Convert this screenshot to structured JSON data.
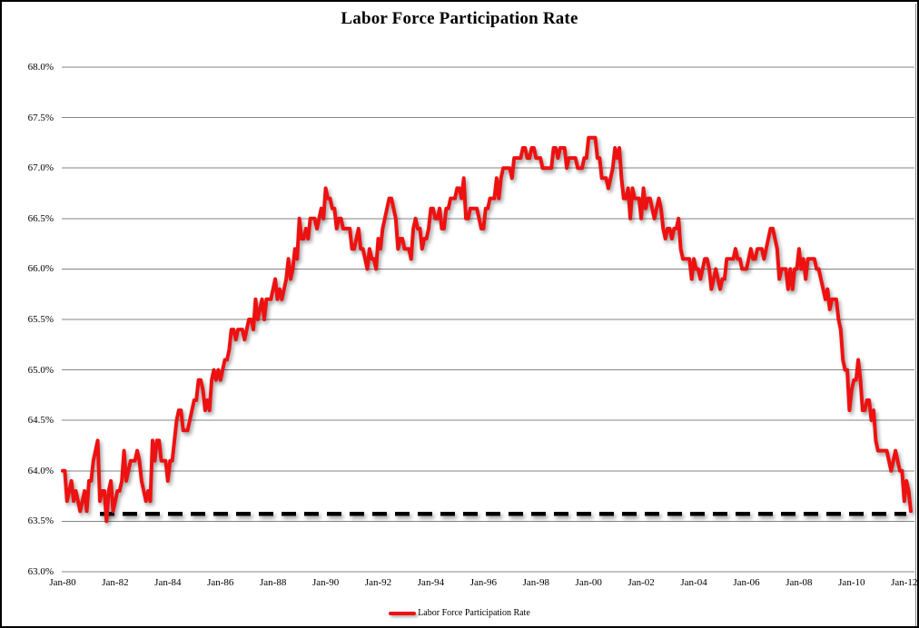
{
  "chart_data": {
    "type": "line",
    "title": "Labor Force Participation Rate",
    "legend_position": "bottom",
    "grid": true,
    "colors": {
      "series": "#ee1111",
      "reference_line": "#000000",
      "gridline": "#848484",
      "background": "#ffffff",
      "border": "#000000"
    },
    "y_axis": {
      "min": 63.0,
      "max": 68.0,
      "step": 0.5,
      "tick_labels": [
        "68.0%",
        "67.5%",
        "67.0%",
        "66.5%",
        "66.0%",
        "65.5%",
        "65.0%",
        "64.5%",
        "64.0%",
        "63.5%",
        "63.0%"
      ]
    },
    "x_axis": {
      "tick_labels": [
        "Jan-80",
        "Jan-82",
        "Jan-84",
        "Jan-86",
        "Jan-88",
        "Jan-90",
        "Jan-92",
        "Jan-94",
        "Jan-96",
        "Jan-98",
        "Jan-00",
        "Jan-02",
        "Jan-04",
        "Jan-06",
        "Jan-08",
        "Jan-10",
        "Jan-12"
      ],
      "months_per_tick": 24
    },
    "reference_line": {
      "value": 63.6,
      "style": "dashed",
      "color": "#000000"
    },
    "legend": [
      {
        "label": "Labor Force Participation Rate",
        "color": "#ee1111"
      }
    ],
    "series": [
      {
        "name": "Labor Force Participation Rate",
        "color": "#ee1111",
        "start": "Jan-80",
        "frequency": "monthly",
        "values": [
          64.0,
          64.0,
          63.7,
          63.8,
          63.9,
          63.7,
          63.8,
          63.7,
          63.6,
          63.7,
          63.8,
          63.6,
          63.9,
          63.9,
          64.1,
          64.2,
          64.3,
          63.7,
          63.8,
          63.8,
          63.5,
          63.8,
          63.9,
          63.6,
          63.7,
          63.8,
          63.8,
          63.9,
          64.2,
          63.9,
          64.0,
          64.1,
          64.1,
          64.1,
          64.2,
          64.1,
          63.9,
          63.8,
          63.7,
          63.8,
          63.7,
          64.3,
          64.1,
          64.3,
          64.3,
          64.1,
          64.1,
          64.1,
          63.9,
          64.1,
          64.1,
          64.3,
          64.5,
          64.6,
          64.6,
          64.4,
          64.4,
          64.4,
          64.5,
          64.6,
          64.7,
          64.7,
          64.9,
          64.9,
          64.8,
          64.6,
          64.7,
          64.6,
          64.9,
          65.0,
          64.9,
          65.0,
          64.9,
          65.0,
          65.1,
          65.1,
          65.2,
          65.4,
          65.4,
          65.3,
          65.4,
          65.4,
          65.4,
          65.3,
          65.4,
          65.5,
          65.5,
          65.4,
          65.7,
          65.5,
          65.6,
          65.7,
          65.5,
          65.7,
          65.7,
          65.7,
          65.8,
          65.9,
          65.7,
          65.8,
          65.7,
          65.8,
          65.9,
          66.1,
          65.9,
          66.0,
          66.2,
          66.1,
          66.5,
          66.3,
          66.3,
          66.4,
          66.3,
          66.5,
          66.5,
          66.5,
          66.4,
          66.5,
          66.6,
          66.5,
          66.8,
          66.7,
          66.7,
          66.6,
          66.6,
          66.4,
          66.5,
          66.5,
          66.4,
          66.4,
          66.4,
          66.4,
          66.2,
          66.2,
          66.3,
          66.4,
          66.2,
          66.2,
          66.1,
          66.0,
          66.2,
          66.1,
          66.1,
          66.0,
          66.3,
          66.2,
          66.4,
          66.5,
          66.6,
          66.7,
          66.7,
          66.6,
          66.5,
          66.2,
          66.3,
          66.3,
          66.2,
          66.2,
          66.2,
          66.1,
          66.4,
          66.5,
          66.4,
          66.4,
          66.2,
          66.3,
          66.3,
          66.4,
          66.6,
          66.6,
          66.5,
          66.5,
          66.6,
          66.4,
          66.4,
          66.6,
          66.6,
          66.7,
          66.7,
          66.7,
          66.8,
          66.8,
          66.7,
          66.9,
          66.5,
          66.5,
          66.6,
          66.6,
          66.6,
          66.6,
          66.5,
          66.4,
          66.4,
          66.6,
          66.6,
          66.7,
          66.7,
          66.7,
          66.9,
          66.7,
          66.9,
          67.0,
          67.0,
          67.0,
          67.0,
          66.9,
          67.1,
          67.1,
          67.1,
          67.1,
          67.2,
          67.2,
          67.1,
          67.1,
          67.2,
          67.2,
          67.1,
          67.1,
          67.1,
          67.0,
          67.0,
          67.0,
          67.0,
          67.0,
          67.2,
          67.2,
          67.1,
          67.2,
          67.2,
          67.2,
          67.0,
          67.1,
          67.1,
          67.1,
          67.1,
          67.0,
          67.0,
          67.0,
          67.1,
          67.1,
          67.3,
          67.3,
          67.3,
          67.3,
          67.1,
          67.1,
          66.9,
          66.9,
          66.9,
          66.8,
          66.9,
          67.0,
          67.2,
          67.1,
          67.2,
          66.9,
          66.7,
          66.7,
          66.8,
          66.5,
          66.8,
          66.7,
          66.7,
          66.7,
          66.5,
          66.8,
          66.6,
          66.7,
          66.7,
          66.6,
          66.5,
          66.6,
          66.7,
          66.6,
          66.4,
          66.3,
          66.4,
          66.4,
          66.3,
          66.4,
          66.4,
          66.5,
          66.2,
          66.1,
          66.1,
          66.1,
          66.1,
          65.9,
          66.1,
          66.0,
          66.0,
          65.9,
          66.0,
          66.1,
          66.1,
          66.0,
          65.8,
          65.9,
          66.0,
          65.9,
          65.8,
          65.9,
          65.9,
          66.1,
          66.1,
          66.1,
          66.1,
          66.2,
          66.1,
          66.1,
          66.0,
          66.0,
          66.0,
          66.1,
          66.2,
          66.1,
          66.1,
          66.2,
          66.2,
          66.2,
          66.1,
          66.2,
          66.3,
          66.4,
          66.4,
          66.3,
          66.2,
          65.9,
          66.0,
          66.0,
          66.0,
          65.8,
          66.0,
          65.8,
          66.0,
          66.0,
          66.2,
          66.0,
          66.1,
          65.9,
          66.1,
          66.1,
          66.1,
          66.1,
          66.0,
          66.0,
          65.9,
          65.8,
          65.7,
          65.8,
          65.6,
          65.7,
          65.7,
          65.7,
          65.5,
          65.4,
          65.1,
          65.0,
          65.0,
          64.6,
          64.8,
          64.9,
          64.9,
          65.1,
          64.9,
          64.6,
          64.6,
          64.7,
          64.7,
          64.5,
          64.6,
          64.3,
          64.2,
          64.2,
          64.2,
          64.2,
          64.2,
          64.1,
          64.0,
          64.1,
          64.2,
          64.1,
          64.0,
          64.0,
          63.7,
          63.9,
          63.8,
          63.6
        ]
      }
    ]
  }
}
